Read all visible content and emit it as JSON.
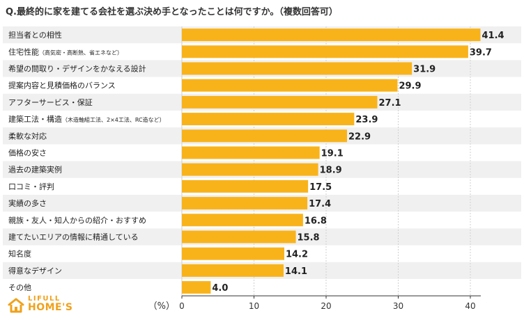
{
  "title": "Q.最終的に家を建てる会社を選ぶ決め手となったことは何ですか。（複数回答可）",
  "logo": {
    "line1": "LIFULL",
    "line2": "HOME'S",
    "icon": "house-logo-icon"
  },
  "colors": {
    "bar": "#f9b31a",
    "stripe": "#f0f0f0",
    "axis": "#333333",
    "grid": "#cfcfcf",
    "logo": "#f0a11a"
  },
  "chart_data": {
    "type": "bar",
    "orientation": "horizontal",
    "title": "Q.最終的に家を建てる会社を選ぶ決め手となったことは何ですか。（複数回答可）",
    "xlabel": "（%）",
    "ylabel": "",
    "xlim": [
      0,
      45
    ],
    "xticks": [
      0,
      10,
      20,
      30,
      40
    ],
    "grid": true,
    "categories": [
      {
        "label": "担当者との相性",
        "note": ""
      },
      {
        "label": "住宅性能",
        "note": "（高気密・高断熱、省エネなど）"
      },
      {
        "label": "希望の間取り・デザインをかなえる設計",
        "note": ""
      },
      {
        "label": "提案内容と見積価格のバランス",
        "note": ""
      },
      {
        "label": "アフターサービス・保証",
        "note": ""
      },
      {
        "label": "建築工法・構造",
        "note": "（木造軸組工法、2×4工法、RC造など）"
      },
      {
        "label": "柔軟な対応",
        "note": ""
      },
      {
        "label": "価格の安さ",
        "note": ""
      },
      {
        "label": "過去の建築実例",
        "note": ""
      },
      {
        "label": "口コミ・評判",
        "note": ""
      },
      {
        "label": "実績の多さ",
        "note": ""
      },
      {
        "label": "親族・友人・知人からの紹介・おすすめ",
        "note": ""
      },
      {
        "label": "建てたいエリアの情報に精通している",
        "note": ""
      },
      {
        "label": "知名度",
        "note": ""
      },
      {
        "label": "得意なデザイン",
        "note": ""
      },
      {
        "label": "その他",
        "note": ""
      }
    ],
    "values": [
      41.4,
      39.7,
      31.9,
      29.9,
      27.1,
      23.9,
      22.9,
      19.1,
      18.9,
      17.5,
      17.4,
      16.8,
      15.8,
      14.2,
      14.1,
      4.0
    ],
    "value_labels": [
      "41.4",
      "39.7",
      "31.9",
      "29.9",
      "27.1",
      "23.9",
      "22.9",
      "19.1",
      "18.9",
      "17.5",
      "17.4",
      "16.8",
      "15.8",
      "14.2",
      "14.1",
      "4.0"
    ]
  }
}
